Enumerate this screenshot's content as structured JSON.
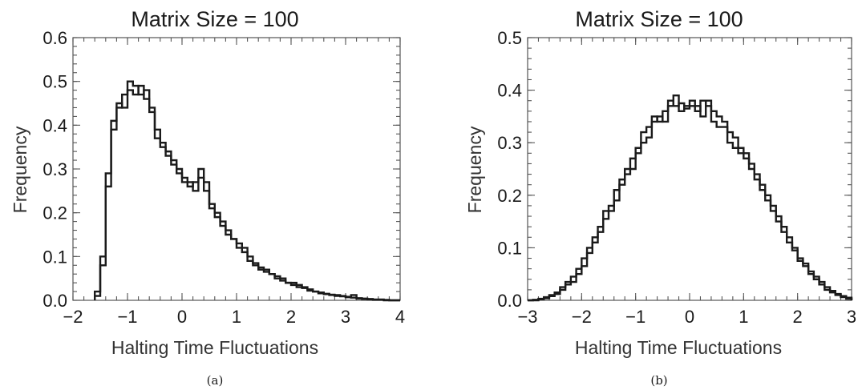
{
  "chart_data": [
    {
      "type": "histogram",
      "panel": "a",
      "title": "Matrix Size = 100",
      "xlabel": "Halting Time Fluctuations",
      "ylabel": "Frequency",
      "caption": "(a)",
      "xlim": [
        -2,
        4
      ],
      "ylim": [
        0,
        0.6
      ],
      "xticks": [
        -2,
        -1,
        0,
        1,
        2,
        3,
        4
      ],
      "xtick_labels": [
        "−2",
        "−1",
        "0",
        "1",
        "2",
        "3",
        "4"
      ],
      "yticks": [
        0,
        0.1,
        0.2,
        0.3,
        0.4,
        0.5,
        0.6
      ],
      "ytick_labels": [
        "0.0",
        "0.1",
        "0.2",
        "0.3",
        "0.4",
        "0.5",
        "0.6"
      ],
      "bin_start": -1.6,
      "bin_width": 0.1,
      "series": [
        {
          "values": [
            0.01,
            0.08,
            0.26,
            0.39,
            0.45,
            0.44,
            0.48,
            0.47,
            0.49,
            0.46,
            0.44,
            0.37,
            0.35,
            0.33,
            0.31,
            0.29,
            0.28,
            0.26,
            0.27,
            0.3,
            0.25,
            0.22,
            0.19,
            0.18,
            0.15,
            0.14,
            0.13,
            0.11,
            0.1,
            0.08,
            0.07,
            0.07,
            0.06,
            0.055,
            0.05,
            0.04,
            0.035,
            0.035,
            0.03,
            0.025,
            0.02,
            0.018,
            0.015,
            0.013,
            0.012,
            0.01,
            0.008,
            0.006,
            0.004,
            0.003,
            0.002,
            0.001,
            0.001,
            0.0,
            0.0,
            0.0
          ]
        },
        {
          "values": [
            0.02,
            0.1,
            0.29,
            0.41,
            0.44,
            0.47,
            0.5,
            0.49,
            0.47,
            0.48,
            0.43,
            0.39,
            0.36,
            0.34,
            0.32,
            0.3,
            0.27,
            0.27,
            0.25,
            0.28,
            0.27,
            0.21,
            0.2,
            0.17,
            0.16,
            0.14,
            0.12,
            0.12,
            0.09,
            0.085,
            0.075,
            0.065,
            0.06,
            0.05,
            0.045,
            0.04,
            0.04,
            0.03,
            0.028,
            0.022,
            0.02,
            0.016,
            0.014,
            0.012,
            0.01,
            0.009,
            0.007,
            0.012,
            0.005,
            0.004,
            0.003,
            0.002,
            0.002,
            0.001,
            0.0,
            0.0
          ]
        }
      ]
    },
    {
      "type": "histogram",
      "panel": "b",
      "title": "Matrix Size = 100",
      "xlabel": "Halting Time Fluctuations",
      "ylabel": "Frequency",
      "caption": "(b)",
      "xlim": [
        -3,
        3
      ],
      "ylim": [
        0,
        0.5
      ],
      "xticks": [
        -3,
        -2,
        -1,
        0,
        1,
        2,
        3
      ],
      "xtick_labels": [
        "−3",
        "−2",
        "−1",
        "0",
        "1",
        "2",
        "3"
      ],
      "yticks": [
        0,
        0.1,
        0.2,
        0.3,
        0.4,
        0.5
      ],
      "ytick_labels": [
        "0.0",
        "0.1",
        "0.2",
        "0.3",
        "0.4",
        "0.5"
      ],
      "bin_start": -3.0,
      "bin_width": 0.1,
      "series": [
        {
          "values": [
            0.0,
            0.0,
            0.002,
            0.004,
            0.008,
            0.012,
            0.02,
            0.03,
            0.035,
            0.05,
            0.065,
            0.09,
            0.11,
            0.13,
            0.155,
            0.17,
            0.19,
            0.22,
            0.24,
            0.25,
            0.28,
            0.3,
            0.31,
            0.34,
            0.35,
            0.34,
            0.37,
            0.39,
            0.36,
            0.37,
            0.37,
            0.36,
            0.38,
            0.37,
            0.36,
            0.35,
            0.34,
            0.32,
            0.31,
            0.29,
            0.28,
            0.26,
            0.24,
            0.22,
            0.2,
            0.18,
            0.16,
            0.14,
            0.12,
            0.1,
            0.08,
            0.07,
            0.055,
            0.045,
            0.035,
            0.025,
            0.018,
            0.012,
            0.008,
            0.005
          ]
        },
        {
          "values": [
            0.0,
            0.001,
            0.003,
            0.006,
            0.01,
            0.015,
            0.025,
            0.035,
            0.045,
            0.06,
            0.08,
            0.1,
            0.12,
            0.14,
            0.17,
            0.18,
            0.21,
            0.23,
            0.25,
            0.27,
            0.29,
            0.32,
            0.33,
            0.35,
            0.34,
            0.36,
            0.38,
            0.37,
            0.375,
            0.365,
            0.38,
            0.37,
            0.35,
            0.38,
            0.34,
            0.33,
            0.33,
            0.3,
            0.29,
            0.28,
            0.27,
            0.25,
            0.23,
            0.21,
            0.19,
            0.17,
            0.15,
            0.13,
            0.11,
            0.095,
            0.075,
            0.065,
            0.05,
            0.04,
            0.03,
            0.02,
            0.015,
            0.01,
            0.006,
            0.003
          ]
        }
      ]
    }
  ]
}
